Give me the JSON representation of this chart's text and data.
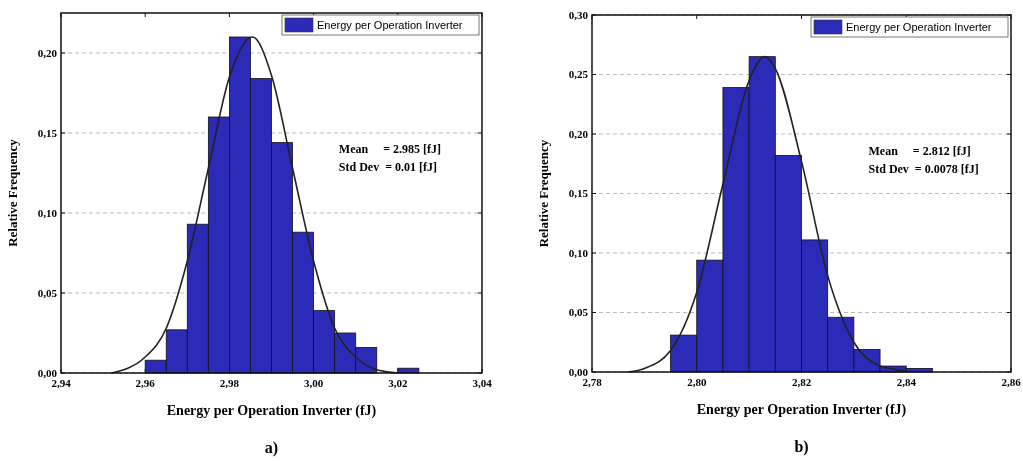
{
  "chart_data": [
    {
      "type": "histogram",
      "xlabel": "Energy per Operation Inverter (fJ)",
      "ylabel": "Relative Frequency",
      "xlim": [
        2.94,
        3.04
      ],
      "ylim": [
        0,
        0.225
      ],
      "xticks": [
        {
          "value": 2.94,
          "label": "2,94"
        },
        {
          "value": 2.96,
          "label": "2,96"
        },
        {
          "value": 2.98,
          "label": "2,98"
        },
        {
          "value": 3.0,
          "label": "3,00"
        },
        {
          "value": 3.02,
          "label": "3,02"
        },
        {
          "value": 3.04,
          "label": "3,04"
        }
      ],
      "yticks": [
        {
          "value": 0,
          "label": "0,00"
        },
        {
          "value": 0.05,
          "label": "0,05"
        },
        {
          "value": 0.1,
          "label": "0,10"
        },
        {
          "value": 0.15,
          "label": "0,15"
        },
        {
          "value": 0.2,
          "label": "0,20"
        }
      ],
      "grid": "y",
      "legend": "top right",
      "annotations": [
        "Mean     = 2.985 [fJ]",
        "Std Dev  = 0.01 [fJ]",
        "a)"
      ],
      "series": [
        {
          "name": "Energy per Operation Inverter",
          "color": "#2b2bb8",
          "bins": [
            2.96,
            2.965,
            2.97,
            2.975,
            2.98,
            2.985,
            2.99,
            2.995,
            3.0,
            3.005,
            3.01,
            3.015,
            3.02,
            3.025
          ],
          "values": [
            0.008,
            0.027,
            0.093,
            0.16,
            0.21,
            0.184,
            0.144,
            0.088,
            0.039,
            0.025,
            0.016,
            0,
            0.003
          ]
        },
        {
          "type": "line",
          "color": "#222222",
          "x": [
            2.952,
            2.96,
            2.965,
            2.97,
            2.975,
            2.98,
            2.9855,
            2.99,
            2.995,
            3.0,
            3.005,
            3.01,
            3.015,
            3.02
          ],
          "values": [
            0,
            0.01,
            0.028,
            0.07,
            0.128,
            0.185,
            0.21,
            0.186,
            0.128,
            0.07,
            0.028,
            0.01,
            0.002,
            0
          ]
        }
      ]
    },
    {
      "type": "histogram",
      "xlabel": "Energy per Operation Inverter (fJ)",
      "ylabel": "Relative Frequency",
      "xlim": [
        2.78,
        2.86
      ],
      "ylim": [
        0,
        0.3
      ],
      "xticks": [
        {
          "value": 2.78,
          "label": "2,78"
        },
        {
          "value": 2.8,
          "label": "2,80"
        },
        {
          "value": 2.82,
          "label": "2,82"
        },
        {
          "value": 2.84,
          "label": "2,84"
        },
        {
          "value": 2.86,
          "label": "2,86"
        }
      ],
      "yticks": [
        {
          "value": 0,
          "label": "0,00"
        },
        {
          "value": 0.05,
          "label": "0,05"
        },
        {
          "value": 0.1,
          "label": "0,10"
        },
        {
          "value": 0.15,
          "label": "0,15"
        },
        {
          "value": 0.2,
          "label": "0,20"
        },
        {
          "value": 0.25,
          "label": "0,25"
        },
        {
          "value": 0.3,
          "label": "0,30"
        }
      ],
      "grid": "y",
      "legend": "top right",
      "annotations": [
        "Mean     = 2.812 [fJ]",
        "Std Dev  = 0.0078 [fJ]",
        "b)"
      ],
      "series": [
        {
          "name": "Energy per Operation Inverter",
          "color": "#2b2bb8",
          "bins": [
            2.795,
            2.8,
            2.805,
            2.81,
            2.815,
            2.82,
            2.825,
            2.83,
            2.835,
            2.84,
            2.845
          ],
          "values": [
            0.031,
            0.094,
            0.239,
            0.265,
            0.182,
            0.111,
            0.046,
            0.019,
            0.005,
            0.003
          ]
        },
        {
          "type": "line",
          "color": "#222222",
          "x": [
            2.787,
            2.79,
            2.795,
            2.8,
            2.805,
            2.81,
            2.813,
            2.815,
            2.82,
            2.825,
            2.83,
            2.835,
            2.84
          ],
          "values": [
            0,
            0.003,
            0.018,
            0.067,
            0.158,
            0.245,
            0.265,
            0.255,
            0.177,
            0.081,
            0.025,
            0.005,
            0.001
          ]
        }
      ]
    }
  ]
}
